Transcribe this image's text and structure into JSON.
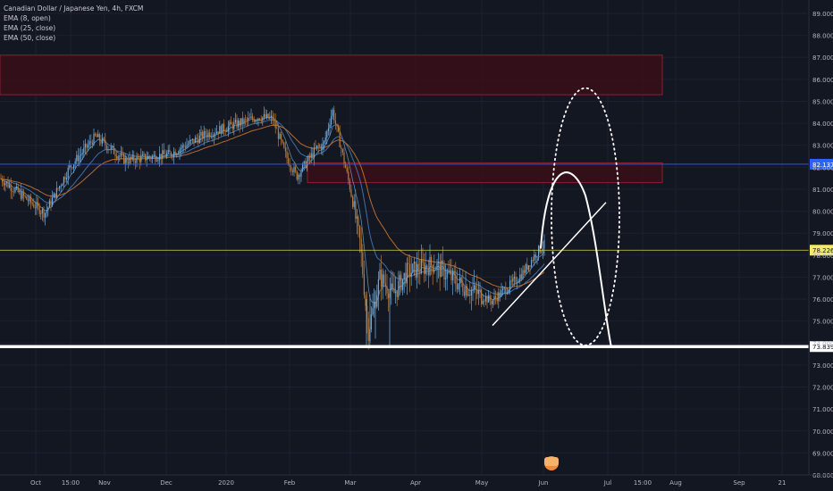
{
  "header": {
    "title": "Canadian Dollar / Japanese Yen, 4h, FXCM",
    "indicators": [
      "EMA (8, open)",
      "EMA (25, close)",
      "EMA (50, close)"
    ]
  },
  "colors": {
    "background": "#131722",
    "axis_text": "#b2b5be",
    "grid": "#1c2030",
    "candle_up": "#6ea8d8",
    "candle_down": "#b87a3a",
    "ema_fast": "#3f6fa8",
    "ema_slow": "#b46b2e",
    "zone_fill": "#3a0f18",
    "zone_border": "#8a2030",
    "current_price_line": "#2962ff",
    "level_line_yellow": "#d6d24a",
    "support_line": "#ffffff"
  },
  "chart_data": {
    "type": "candlestick",
    "symbol": "Canadian Dollar / Japanese Yen",
    "interval": "4h",
    "source": "FXCM",
    "ylim": [
      68.0,
      90.0
    ],
    "y_ticks": [
      "89.000",
      "88.000",
      "87.000",
      "86.000",
      "85.000",
      "84.000",
      "83.000",
      "82.000",
      "81.000",
      "80.000",
      "79.000",
      "78.000",
      "77.000",
      "76.000",
      "75.000",
      "74.000",
      "73.000",
      "72.000",
      "71.000",
      "70.000",
      "69.000",
      "68.000"
    ],
    "x_ticks": [
      "Oct",
      "15:00",
      "Nov",
      "Dec",
      "2020",
      "Feb",
      "Mar",
      "Apr",
      "May",
      "Jun",
      "Jul",
      "15:00",
      "Aug",
      "Sep",
      "21"
    ],
    "price_path": [
      [
        "Sep",
        81.5
      ],
      [
        "Oct",
        79.9
      ],
      [
        "Oct/Nov",
        82.0
      ],
      [
        "Nov",
        83.4
      ],
      [
        "Nov/Dec",
        82.3
      ],
      [
        "Dec",
        82.6
      ],
      [
        "Dec/2020",
        83.5
      ],
      [
        "2020",
        84.3
      ],
      [
        "2020+",
        84.2
      ],
      [
        "Jan",
        82.5
      ],
      [
        "Jan/Feb",
        81.6
      ],
      [
        "Feb-",
        82.9
      ],
      [
        "Feb",
        83.0
      ],
      [
        "Feb+",
        84.6
      ],
      [
        "Feb/Mar",
        81.0
      ],
      [
        "Mar-",
        78.5
      ],
      [
        "Mar",
        74.5
      ],
      [
        "Mar+",
        77.0
      ],
      [
        "Apr-",
        76.2
      ],
      [
        "Apr",
        77.2
      ],
      [
        "Apr+",
        77.6
      ],
      [
        "Apr/May",
        76.8
      ],
      [
        "May",
        75.9
      ],
      [
        "May+",
        76.6
      ],
      [
        "May/Jun",
        77.2
      ],
      [
        "Jun",
        78.1
      ],
      [
        "Jun+",
        78.5
      ]
    ],
    "zones": [
      {
        "name": "upper supply zone",
        "from": 85.3,
        "to": 87.1
      },
      {
        "name": "lower supply zone",
        "from": 81.3,
        "to": 82.2
      }
    ],
    "horizontal_lines": [
      {
        "price": 82.137,
        "label": "82.137",
        "color": "#2962ff"
      },
      {
        "price": 78.226,
        "label": "78.226",
        "color": "#d6d24a"
      },
      {
        "price": 73.839,
        "label": "73.839",
        "color": "#ffffff"
      }
    ],
    "drawings": [
      {
        "type": "trendline",
        "from_price": 74.8,
        "to_price": 80.4
      },
      {
        "type": "projected-curve",
        "start_price": 78.3,
        "peak_price": 81.2,
        "end_price": 73.8
      },
      {
        "type": "dotted-ellipse",
        "top_price": 85.6,
        "bottom_price": 73.9
      }
    ],
    "grid": true,
    "legend_position": "top-left"
  }
}
